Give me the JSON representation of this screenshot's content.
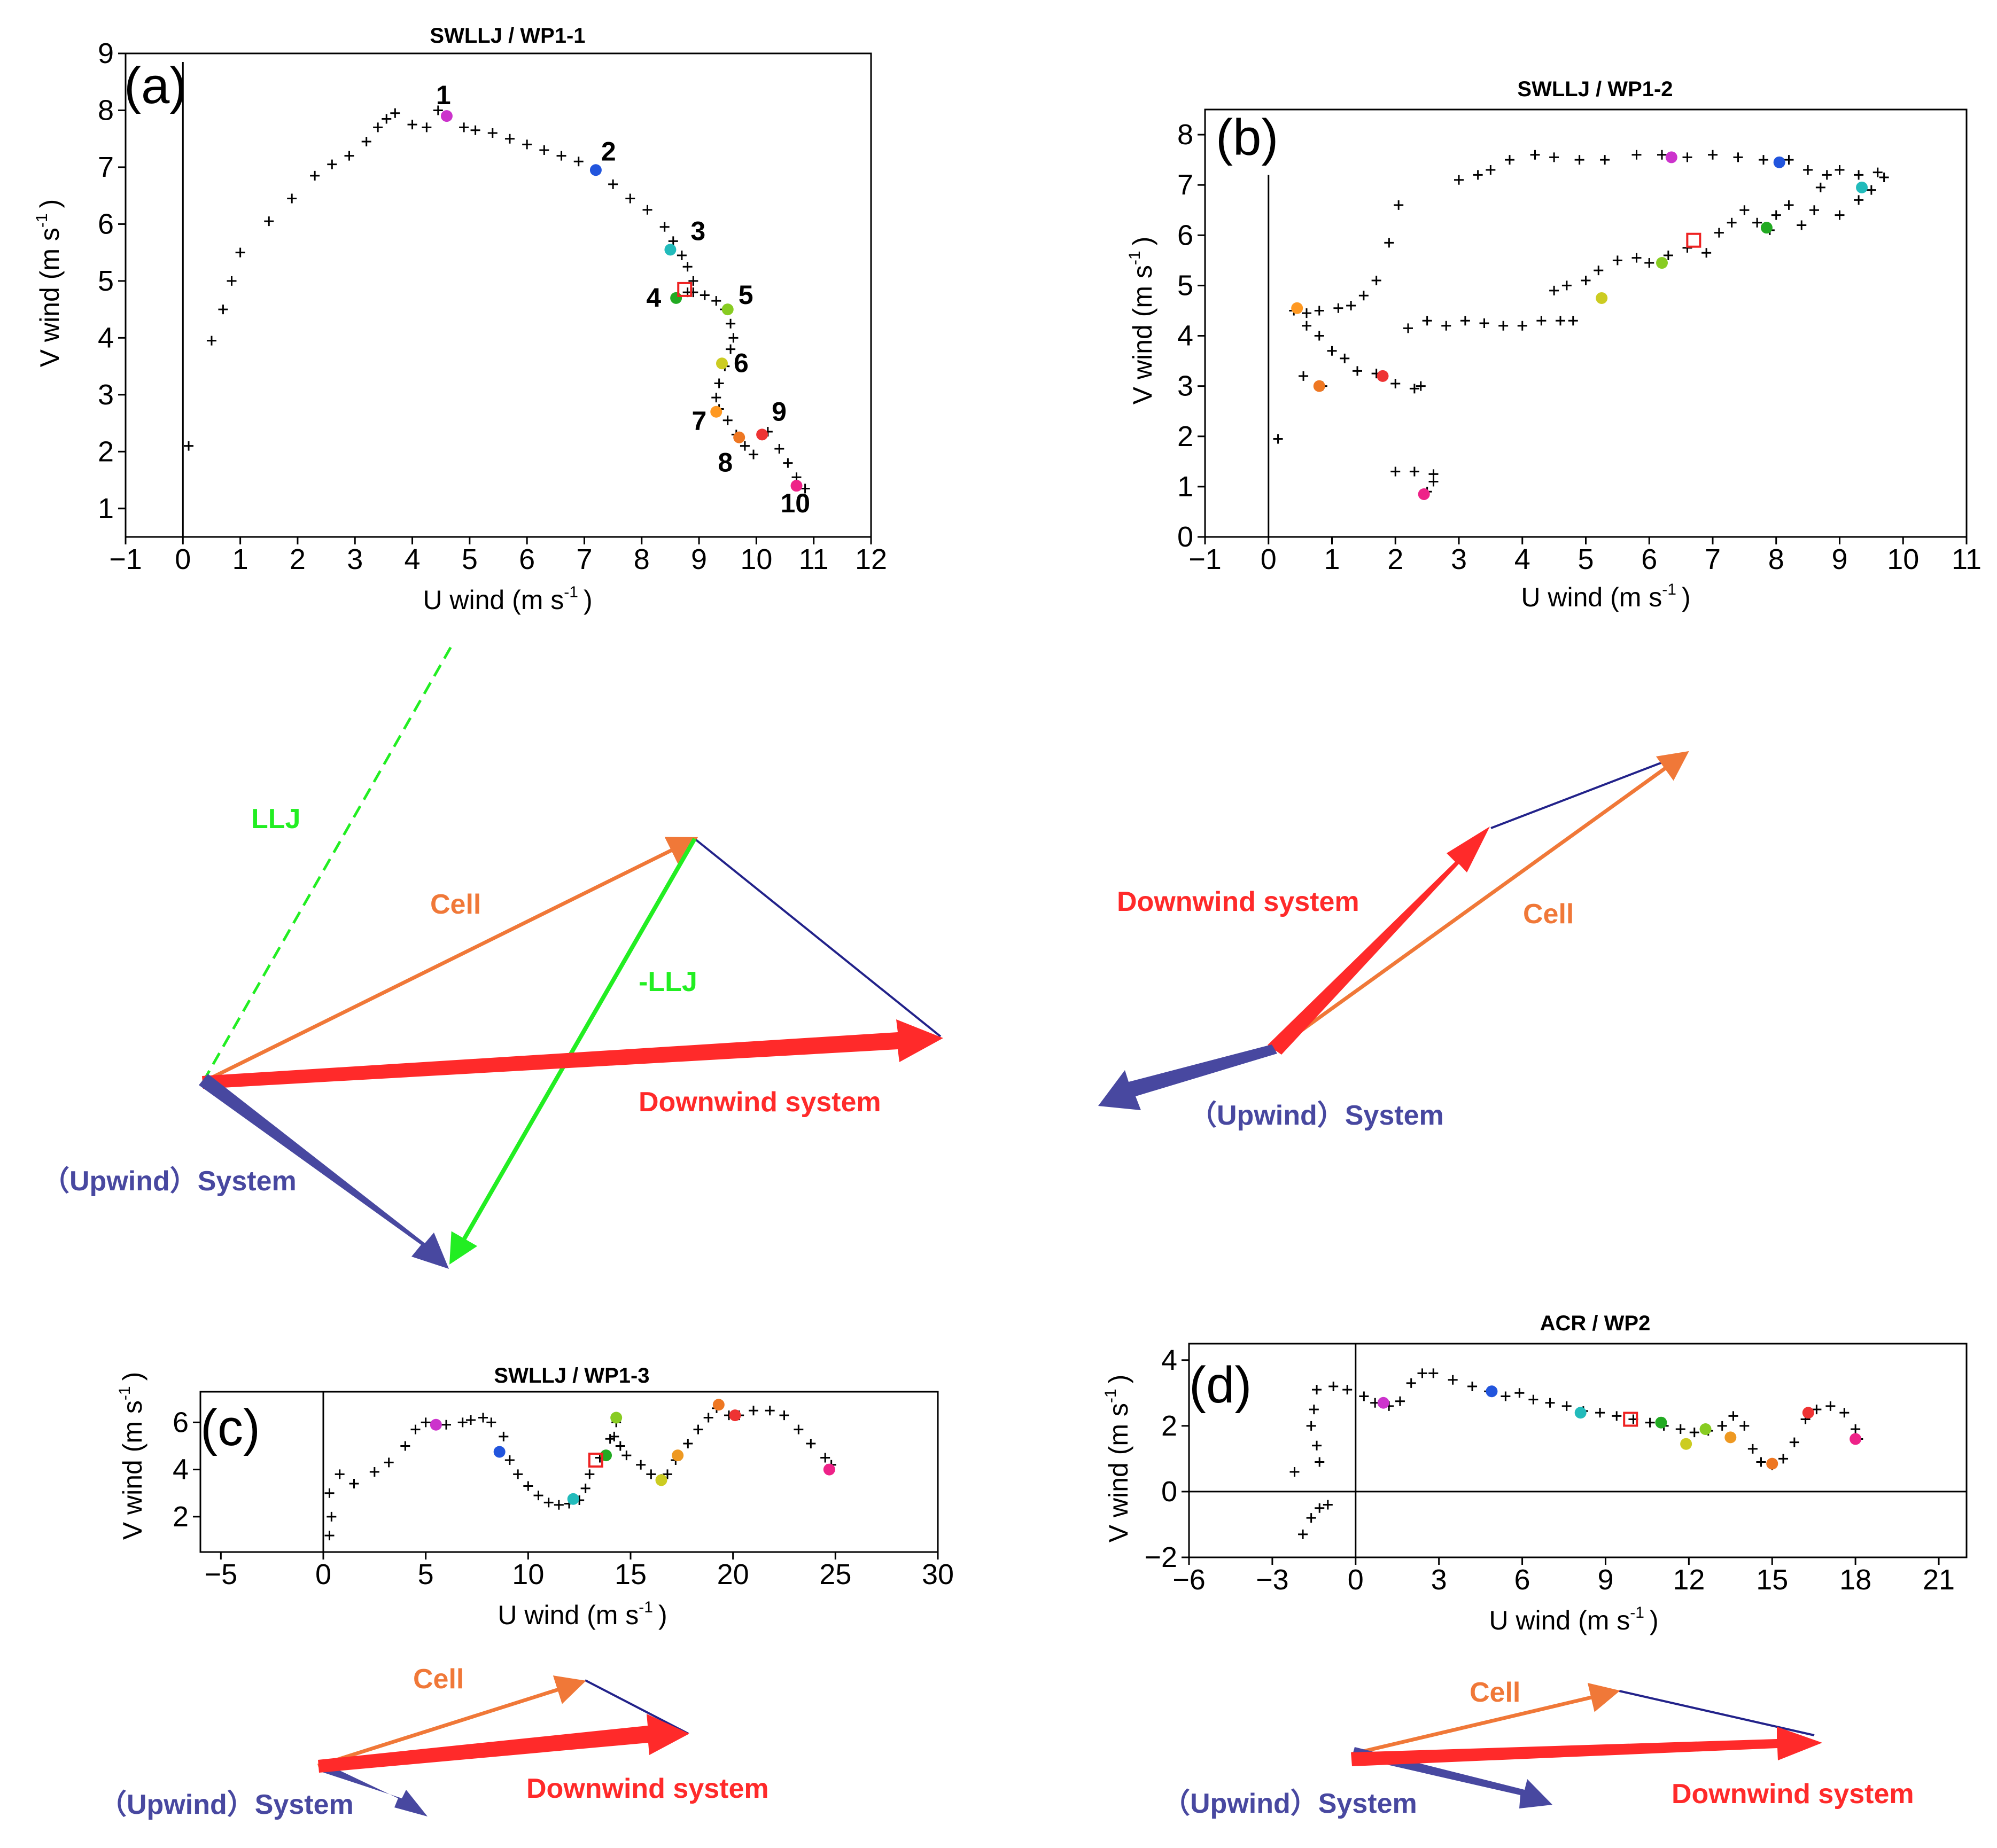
{
  "chart_data": [
    {
      "id": "a",
      "type": "scatter",
      "panel_label": "(a)",
      "title": "SWLLJ / WP1-1",
      "xlabel": "U wind (m s",
      "ylabel": "V wind (m s",
      "unit_exponent": "-1",
      "label_close": ")",
      "xlim": [
        -1,
        12
      ],
      "ylim": [
        0.5,
        9
      ],
      "xticks": [
        -1,
        0,
        1,
        2,
        3,
        4,
        5,
        6,
        7,
        8,
        9,
        10,
        11,
        12
      ],
      "yticks": [
        1,
        2,
        3,
        4,
        5,
        6,
        7,
        8,
        9
      ],
      "zero_lines": [
        "x"
      ],
      "trace": [
        [
          0.1,
          2.1
        ],
        [
          0.5,
          3.95
        ],
        [
          0.7,
          4.5
        ],
        [
          0.85,
          5.0
        ],
        [
          1.0,
          5.5
        ],
        [
          1.5,
          6.05
        ],
        [
          1.9,
          6.45
        ],
        [
          2.3,
          6.85
        ],
        [
          2.6,
          7.05
        ],
        [
          2.9,
          7.2
        ],
        [
          3.2,
          7.45
        ],
        [
          3.4,
          7.7
        ],
        [
          3.55,
          7.85
        ],
        [
          3.7,
          7.95
        ],
        [
          4.0,
          7.75
        ],
        [
          4.25,
          7.7
        ],
        [
          4.45,
          8.0
        ],
        [
          4.6,
          7.9
        ],
        [
          4.9,
          7.7
        ],
        [
          5.1,
          7.65
        ],
        [
          5.4,
          7.6
        ],
        [
          5.7,
          7.5
        ],
        [
          6.0,
          7.4
        ],
        [
          6.3,
          7.3
        ],
        [
          6.6,
          7.2
        ],
        [
          6.9,
          7.1
        ],
        [
          7.2,
          6.95
        ],
        [
          7.5,
          6.7
        ],
        [
          7.8,
          6.45
        ],
        [
          8.1,
          6.25
        ],
        [
          8.4,
          5.95
        ],
        [
          8.55,
          5.7
        ],
        [
          8.7,
          5.45
        ],
        [
          8.8,
          5.25
        ],
        [
          8.9,
          5.0
        ],
        [
          8.8,
          4.8
        ],
        [
          8.9,
          4.8
        ],
        [
          9.1,
          4.75
        ],
        [
          9.3,
          4.65
        ],
        [
          9.45,
          4.5
        ],
        [
          9.55,
          4.25
        ],
        [
          9.6,
          4.0
        ],
        [
          9.55,
          3.8
        ],
        [
          9.45,
          3.5
        ],
        [
          9.35,
          3.2
        ],
        [
          9.3,
          2.95
        ],
        [
          9.35,
          2.75
        ],
        [
          9.5,
          2.55
        ],
        [
          9.65,
          2.3
        ],
        [
          9.8,
          2.1
        ],
        [
          9.95,
          1.95
        ],
        [
          10.2,
          2.35
        ],
        [
          10.4,
          2.05
        ],
        [
          10.55,
          1.8
        ],
        [
          10.7,
          1.55
        ],
        [
          10.85,
          1.35
        ]
      ],
      "markers": [
        {
          "x": 4.6,
          "y": 7.9,
          "color": "#cc33cc",
          "label": "1"
        },
        {
          "x": 7.2,
          "y": 6.95,
          "color": "#2255dd",
          "label": "2"
        },
        {
          "x": 8.5,
          "y": 5.55,
          "color": "#22bbbb",
          "label": "3"
        },
        {
          "x": 8.6,
          "y": 4.7,
          "color": "#22aa22",
          "label": "4"
        },
        {
          "x": 9.5,
          "y": 4.5,
          "color": "#88cc22",
          "label": "5"
        },
        {
          "x": 9.4,
          "y": 3.55,
          "color": "#cccc22",
          "label": "6"
        },
        {
          "x": 9.3,
          "y": 2.7,
          "color": "#ff9922",
          "label": "7"
        },
        {
          "x": 9.7,
          "y": 2.25,
          "color": "#ee7722",
          "label": "8"
        },
        {
          "x": 10.1,
          "y": 2.3,
          "color": "#ee3333",
          "label": "9"
        },
        {
          "x": 10.7,
          "y": 1.4,
          "color": "#ee2288",
          "label": "10"
        }
      ],
      "square_marker": {
        "x": 8.75,
        "y": 4.85,
        "color": "#ee2222"
      }
    },
    {
      "id": "b",
      "type": "scatter",
      "panel_label": "(b)",
      "title": "SWLLJ / WP1-2",
      "xlabel": "U wind (m s",
      "ylabel": "V wind (m s",
      "unit_exponent": "-1",
      "label_close": ")",
      "xlim": [
        -1,
        11
      ],
      "ylim": [
        0,
        8.5
      ],
      "xticks": [
        -1,
        0,
        1,
        2,
        3,
        4,
        5,
        6,
        7,
        8,
        9,
        10,
        11
      ],
      "yticks": [
        0,
        1,
        2,
        3,
        4,
        5,
        6,
        7,
        8
      ],
      "zero_lines": [
        "x"
      ],
      "trace": [
        [
          0.15,
          1.95
        ],
        [
          0.4,
          4.5
        ],
        [
          0.6,
          4.2
        ],
        [
          0.8,
          4.0
        ],
        [
          1.0,
          3.7
        ],
        [
          1.2,
          3.55
        ],
        [
          0.55,
          3.2
        ],
        [
          0.85,
          3.0
        ],
        [
          1.4,
          3.3
        ],
        [
          1.7,
          3.25
        ],
        [
          2.0,
          3.05
        ],
        [
          2.3,
          2.95
        ],
        [
          2.4,
          3.0
        ],
        [
          0.6,
          4.45
        ],
        [
          0.8,
          4.5
        ],
        [
          1.1,
          4.55
        ],
        [
          1.3,
          4.6
        ],
        [
          1.5,
          4.8
        ],
        [
          1.7,
          5.1
        ],
        [
          1.9,
          5.85
        ],
        [
          2.05,
          6.6
        ],
        [
          2.2,
          4.15
        ],
        [
          2.5,
          4.3
        ],
        [
          2.8,
          4.2
        ],
        [
          3.1,
          4.3
        ],
        [
          3.4,
          4.25
        ],
        [
          3.7,
          4.2
        ],
        [
          4.0,
          4.2
        ],
        [
          4.3,
          4.3
        ],
        [
          4.6,
          4.3
        ],
        [
          4.8,
          4.3
        ],
        [
          4.5,
          4.9
        ],
        [
          4.7,
          5.0
        ],
        [
          5.0,
          5.1
        ],
        [
          5.2,
          5.3
        ],
        [
          5.5,
          5.5
        ],
        [
          5.8,
          5.55
        ],
        [
          6.0,
          5.45
        ],
        [
          6.3,
          5.6
        ],
        [
          6.6,
          5.75
        ],
        [
          6.9,
          5.65
        ],
        [
          7.1,
          6.05
        ],
        [
          7.3,
          6.25
        ],
        [
          7.5,
          6.5
        ],
        [
          7.7,
          6.25
        ],
        [
          7.9,
          6.1
        ],
        [
          8.0,
          6.4
        ],
        [
          8.2,
          6.6
        ],
        [
          8.4,
          6.2
        ],
        [
          8.6,
          6.5
        ],
        [
          8.7,
          6.95
        ],
        [
          8.8,
          7.2
        ],
        [
          8.5,
          7.3
        ],
        [
          8.2,
          7.5
        ],
        [
          7.8,
          7.5
        ],
        [
          7.4,
          7.55
        ],
        [
          7.0,
          7.6
        ],
        [
          6.6,
          7.55
        ],
        [
          6.2,
          7.6
        ],
        [
          5.8,
          7.6
        ],
        [
          5.3,
          7.5
        ],
        [
          4.9,
          7.5
        ],
        [
          4.5,
          7.55
        ],
        [
          4.2,
          7.6
        ],
        [
          3.8,
          7.5
        ],
        [
          3.5,
          7.3
        ],
        [
          3.3,
          7.2
        ],
        [
          3.0,
          7.1
        ],
        [
          9.0,
          7.3
        ],
        [
          9.3,
          7.2
        ],
        [
          9.6,
          7.25
        ],
        [
          9.7,
          7.15
        ],
        [
          9.5,
          6.9
        ],
        [
          9.3,
          6.7
        ],
        [
          9.0,
          6.4
        ],
        [
          2.0,
          1.3
        ],
        [
          2.3,
          1.3
        ],
        [
          2.6,
          1.25
        ],
        [
          2.6,
          1.1
        ],
        [
          2.5,
          0.9
        ]
      ],
      "markers": [
        {
          "x": 6.35,
          "y": 7.55,
          "color": "#cc33cc"
        },
        {
          "x": 8.05,
          "y": 7.45,
          "color": "#2255dd"
        },
        {
          "x": 9.35,
          "y": 6.95,
          "color": "#22bbbb"
        },
        {
          "x": 7.85,
          "y": 6.15,
          "color": "#22aa22"
        },
        {
          "x": 6.2,
          "y": 5.45,
          "color": "#88cc22"
        },
        {
          "x": 5.25,
          "y": 4.75,
          "color": "#cccc22"
        },
        {
          "x": 0.45,
          "y": 4.55,
          "color": "#ff9922"
        },
        {
          "x": 0.8,
          "y": 3.0,
          "color": "#ee7722"
        },
        {
          "x": 1.8,
          "y": 3.2,
          "color": "#ee3333"
        },
        {
          "x": 2.45,
          "y": 0.85,
          "color": "#ee2288"
        }
      ],
      "square_marker": {
        "x": 6.7,
        "y": 5.9,
        "color": "#ee2222"
      }
    },
    {
      "id": "c",
      "type": "scatter",
      "panel_label": "(c)",
      "title": "SWLLJ / WP1-3",
      "xlabel": "U wind (m s",
      "ylabel": "V wind (m s",
      "unit_exponent": "-1",
      "label_close": ")",
      "xlim": [
        -6,
        30
      ],
      "ylim": [
        0.5,
        7.3
      ],
      "xticks": [
        -5,
        0,
        5,
        10,
        15,
        20,
        25,
        30
      ],
      "yticks": [
        2,
        4,
        6
      ],
      "zero_lines": [
        "x"
      ],
      "trace": [
        [
          0.3,
          1.2
        ],
        [
          0.4,
          2.0
        ],
        [
          0.3,
          3.0
        ],
        [
          0.8,
          3.8
        ],
        [
          1.5,
          3.4
        ],
        [
          2.5,
          3.9
        ],
        [
          3.2,
          4.3
        ],
        [
          4.0,
          5.0
        ],
        [
          4.5,
          5.7
        ],
        [
          5.0,
          6.0
        ],
        [
          6.0,
          5.9
        ],
        [
          6.8,
          6.0
        ],
        [
          7.2,
          6.1
        ],
        [
          7.8,
          6.2
        ],
        [
          8.2,
          6.0
        ],
        [
          8.8,
          5.4
        ],
        [
          9.1,
          4.4
        ],
        [
          9.5,
          3.8
        ],
        [
          10.0,
          3.3
        ],
        [
          10.5,
          2.9
        ],
        [
          11.0,
          2.6
        ],
        [
          11.5,
          2.5
        ],
        [
          12.0,
          2.55
        ],
        [
          12.5,
          2.7
        ],
        [
          12.8,
          3.2
        ],
        [
          13.0,
          3.8
        ],
        [
          13.5,
          4.5
        ],
        [
          14.0,
          5.3
        ],
        [
          14.3,
          6.0
        ],
        [
          14.2,
          5.4
        ],
        [
          14.5,
          5.0
        ],
        [
          14.8,
          4.6
        ],
        [
          15.5,
          4.2
        ],
        [
          16.0,
          3.8
        ],
        [
          16.5,
          3.6
        ],
        [
          16.8,
          3.8
        ],
        [
          17.2,
          4.4
        ],
        [
          17.8,
          5.1
        ],
        [
          18.3,
          5.7
        ],
        [
          18.8,
          6.2
        ],
        [
          19.2,
          6.6
        ],
        [
          19.8,
          6.3
        ],
        [
          20.3,
          6.3
        ],
        [
          21.0,
          6.5
        ],
        [
          21.8,
          6.5
        ],
        [
          22.5,
          6.3
        ],
        [
          23.2,
          5.7
        ],
        [
          23.8,
          5.1
        ],
        [
          24.5,
          4.5
        ],
        [
          24.8,
          4.2
        ]
      ],
      "markers": [
        {
          "x": 5.5,
          "y": 5.9,
          "color": "#cc33cc"
        },
        {
          "x": 8.6,
          "y": 4.75,
          "color": "#2255dd"
        },
        {
          "x": 12.2,
          "y": 2.75,
          "color": "#22bbbb"
        },
        {
          "x": 13.8,
          "y": 4.6,
          "color": "#22aa22"
        },
        {
          "x": 14.3,
          "y": 6.2,
          "color": "#88cc22"
        },
        {
          "x": 16.5,
          "y": 3.55,
          "color": "#cccc22"
        },
        {
          "x": 17.3,
          "y": 4.6,
          "color": "#ee9922"
        },
        {
          "x": 19.3,
          "y": 6.75,
          "color": "#ee7722"
        },
        {
          "x": 20.1,
          "y": 6.3,
          "color": "#ee3333"
        },
        {
          "x": 24.7,
          "y": 4.0,
          "color": "#ee2288"
        }
      ],
      "square_marker": {
        "x": 13.3,
        "y": 4.4,
        "color": "#ee2222"
      }
    },
    {
      "id": "d",
      "type": "scatter",
      "panel_label": "(d)",
      "title": "ACR / WP2",
      "xlabel": "U wind (m s",
      "ylabel": "V wind (m s",
      "unit_exponent": "-1",
      "label_close": ")",
      "xlim": [
        -6,
        22
      ],
      "ylim": [
        -2,
        4.5
      ],
      "xticks": [
        -6,
        -3,
        0,
        3,
        6,
        9,
        12,
        15,
        18,
        21
      ],
      "yticks": [
        -2,
        0,
        2,
        4
      ],
      "zero_lines": [
        "x",
        "y"
      ],
      "trace": [
        [
          -1.9,
          -1.3
        ],
        [
          -1.6,
          -0.8
        ],
        [
          -1.3,
          -0.5
        ],
        [
          -1.0,
          -0.4
        ],
        [
          -2.2,
          0.6
        ],
        [
          -1.3,
          0.9
        ],
        [
          -1.4,
          1.4
        ],
        [
          -1.6,
          2.0
        ],
        [
          -1.5,
          2.5
        ],
        [
          -1.4,
          3.1
        ],
        [
          -0.8,
          3.2
        ],
        [
          -0.3,
          3.1
        ],
        [
          0.3,
          2.9
        ],
        [
          0.7,
          2.7
        ],
        [
          1.2,
          2.6
        ],
        [
          1.6,
          2.75
        ],
        [
          2.0,
          3.3
        ],
        [
          2.4,
          3.6
        ],
        [
          2.8,
          3.6
        ],
        [
          3.5,
          3.4
        ],
        [
          4.2,
          3.2
        ],
        [
          4.8,
          3.05
        ],
        [
          5.4,
          2.9
        ],
        [
          5.9,
          3.0
        ],
        [
          6.4,
          2.8
        ],
        [
          7.0,
          2.7
        ],
        [
          7.6,
          2.6
        ],
        [
          8.2,
          2.45
        ],
        [
          8.8,
          2.4
        ],
        [
          9.4,
          2.3
        ],
        [
          10.0,
          2.2
        ],
        [
          10.6,
          2.1
        ],
        [
          11.1,
          2.0
        ],
        [
          11.7,
          1.9
        ],
        [
          12.2,
          1.8
        ],
        [
          12.7,
          1.85
        ],
        [
          13.2,
          2.0
        ],
        [
          13.6,
          2.3
        ],
        [
          14.0,
          2.0
        ],
        [
          14.3,
          1.3
        ],
        [
          14.6,
          0.9
        ],
        [
          15.0,
          0.8
        ],
        [
          15.4,
          1.0
        ],
        [
          15.8,
          1.5
        ],
        [
          16.2,
          2.2
        ],
        [
          16.6,
          2.5
        ],
        [
          17.1,
          2.6
        ],
        [
          17.6,
          2.4
        ],
        [
          18.0,
          1.9
        ],
        [
          18.1,
          1.6
        ]
      ],
      "markers": [
        {
          "x": 1.0,
          "y": 2.7,
          "color": "#cc33cc"
        },
        {
          "x": 4.9,
          "y": 3.05,
          "color": "#2255dd"
        },
        {
          "x": 8.1,
          "y": 2.4,
          "color": "#22bbbb"
        },
        {
          "x": 11.0,
          "y": 2.1,
          "color": "#22aa22"
        },
        {
          "x": 12.6,
          "y": 1.9,
          "color": "#88cc22"
        },
        {
          "x": 11.9,
          "y": 1.45,
          "color": "#cccc22"
        },
        {
          "x": 13.5,
          "y": 1.65,
          "color": "#ee9922"
        },
        {
          "x": 15.0,
          "y": 0.85,
          "color": "#ee7722"
        },
        {
          "x": 16.3,
          "y": 2.4,
          "color": "#ee3333"
        },
        {
          "x": 18.0,
          "y": 1.6,
          "color": "#ee2288"
        }
      ],
      "square_marker": {
        "x": 9.9,
        "y": 2.2,
        "color": "#ee2222"
      }
    }
  ],
  "diagrams": {
    "a": {
      "llj_label": "LLJ",
      "cell_label": "Cell",
      "neg_llj_label": "-LLJ",
      "downwind_label": "Downwind system",
      "upwind_label": "（Upwind）System"
    },
    "b": {
      "downwind_label": "Downwind system",
      "cell_label": "Cell",
      "upwind_label": "（Upwind）System"
    },
    "c": {
      "cell_label": "Cell",
      "upwind_label": "（Upwind）System",
      "downwind_label": "Downwind system"
    },
    "d": {
      "cell_label": "Cell",
      "upwind_label": "（Upwind）System",
      "downwind_label": "Downwind system"
    }
  },
  "colors": {
    "cell": "#f07838",
    "downwind": "#ff2a2a",
    "upwind": "#4848a0",
    "llj": "#22ee22",
    "thin_line": "#22228a"
  }
}
